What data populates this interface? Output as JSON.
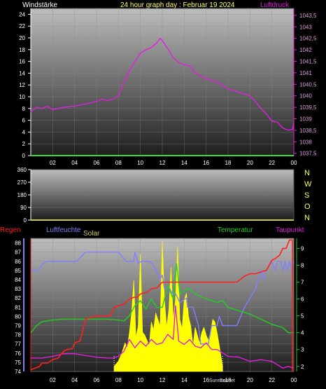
{
  "header": {
    "left_label": "Windstärke",
    "title": "24 hour graph day : Februar 19 2024",
    "right_label": "Luftdruck"
  },
  "colors": {
    "background": "#000000",
    "header_yellow": "#ffff66",
    "left_label": "#ffffff",
    "pressure": "#e020e0",
    "wind_baseline": "#33dd33",
    "direction_baseline": "#cccc33",
    "rain": "#ff2020",
    "humidity": "#8080ff",
    "solar": "#ffff00",
    "temperature": "#20d020",
    "dewpoint": "#e020e0",
    "grid": "#8a8a8a"
  },
  "compass": [
    "N",
    "W",
    "S",
    "O",
    "N"
  ],
  "sun_labels": [
    "Sunrise",
    "Sunset"
  ],
  "chart_data": [
    {
      "type": "line",
      "panel": "wind_pressure",
      "title": "24 hour graph day : Februar 19 2024",
      "xlabel": "",
      "x_ticks": [
        "02",
        "04",
        "06",
        "08",
        "10",
        "12",
        "14",
        "16",
        "18",
        "20",
        "22",
        "00"
      ],
      "xlim": [
        0,
        24
      ],
      "grid": true,
      "left_axis": {
        "label": "Windstärke",
        "ticks": [
          0,
          2,
          4,
          6,
          8,
          10,
          12,
          14,
          16,
          18,
          20,
          22,
          24
        ],
        "ylim": [
          0,
          25
        ]
      },
      "right_axis": {
        "label": "Luftdruck",
        "ticks": [
          "1037,5",
          "1038",
          "1038,5",
          "1039",
          "1039,5",
          "1040",
          "1040,5",
          "1041",
          "1041,5",
          "1042",
          "1042,5",
          "1043",
          "1043,5"
        ],
        "ylim": [
          1037.4,
          1043.8
        ]
      },
      "series": [
        {
          "name": "Luftdruck",
          "axis": "right",
          "x": [
            0,
            0.5,
            1,
            1.5,
            2,
            3,
            4,
            5,
            6,
            6.5,
            7,
            7.5,
            8,
            8.5,
            9,
            9.5,
            10,
            10.5,
            11,
            11.5,
            11.8,
            12,
            12.5,
            13,
            13.5,
            14,
            14.5,
            15,
            15.5,
            16,
            17,
            18,
            19,
            20,
            20.5,
            21,
            21.5,
            22,
            22.5,
            23,
            23.5,
            23.9,
            24
          ],
          "y": [
            1039.3,
            1039.5,
            1039.45,
            1039.55,
            1039.4,
            1039.5,
            1039.55,
            1039.65,
            1039.75,
            1039.85,
            1039.8,
            1039.85,
            1040.0,
            1040.6,
            1041.1,
            1041.5,
            1041.85,
            1042.0,
            1042.1,
            1042.3,
            1042.5,
            1042.4,
            1042.05,
            1041.65,
            1041.45,
            1041.35,
            1041.3,
            1041.0,
            1040.85,
            1040.75,
            1040.6,
            1040.3,
            1040.15,
            1040.0,
            1039.75,
            1039.45,
            1039.2,
            1038.9,
            1038.85,
            1038.6,
            1038.5,
            1038.55,
            1038.85
          ]
        },
        {
          "name": "Windstärke",
          "axis": "left",
          "x": [
            0,
            24
          ],
          "y": [
            0,
            0
          ]
        }
      ]
    },
    {
      "type": "line",
      "panel": "wind_direction",
      "xlim": [
        0,
        24
      ],
      "ylim": [
        0,
        360
      ],
      "y_ticks": [
        0,
        90,
        180,
        270,
        360
      ],
      "grid": true,
      "series": [
        {
          "x": [
            0,
            24
          ],
          "y": [
            0,
            0
          ]
        }
      ]
    },
    {
      "type": "line",
      "panel": "rain_humidity_temperature",
      "x_ticks": [
        "02",
        "04",
        "06",
        "08",
        "10",
        "12",
        "14",
        "16",
        "18",
        "20",
        "22",
        "00"
      ],
      "xlim": [
        0,
        24
      ],
      "grid": true,
      "legend": [
        "Regen",
        "Luftfeuchte",
        "Solar",
        "Temperatur",
        "Taupunkt"
      ],
      "left_axis": {
        "label": "Luftfeuchte",
        "ticks": [
          74,
          75,
          76,
          77,
          78,
          79,
          80,
          81,
          82,
          83,
          84,
          85,
          86,
          87,
          88
        ],
        "ylim": [
          74,
          88.5
        ]
      },
      "right_axis": {
        "label": "Temperatur",
        "ticks": [
          2,
          3,
          4,
          5,
          6,
          7,
          8,
          9
        ],
        "ylim": [
          1.7,
          9.6
        ]
      },
      "series": [
        {
          "name": "Luftfeuchte",
          "axis": "left",
          "x": [
            0,
            0.6,
            1.2,
            1.5,
            2.0,
            3,
            4.2,
            5.0,
            5.2,
            7,
            7.6,
            8.0,
            8.7,
            9.4,
            9.5,
            9.8,
            10.1,
            10.8,
            11.2,
            11.8,
            12.0,
            12.2,
            12.6,
            12.9,
            13.2,
            13.6,
            14.2,
            14.3,
            14.8,
            15.3,
            15.5,
            16.2,
            16.5,
            17.0,
            17.2,
            17.5,
            18.5,
            18.8,
            19.5,
            20.5,
            21.0,
            21.2,
            21.5,
            22.0,
            22.3,
            22.5,
            22.8,
            23.0,
            23.2,
            23.4,
            23.6,
            23.8,
            24
          ],
          "y": [
            85.0,
            85.0,
            85.8,
            86.0,
            86.0,
            86.0,
            86.0,
            87.0,
            87.0,
            87.0,
            87.0,
            87.0,
            86.0,
            86.0,
            87.0,
            85.8,
            86.0,
            86.0,
            85.6,
            84.0,
            84.5,
            83.0,
            83.2,
            82.5,
            82.5,
            81.5,
            82.0,
            81.0,
            81.0,
            79.0,
            77.0,
            77.0,
            79.0,
            79.0,
            80.0,
            79.0,
            79.0,
            79.0,
            81.0,
            83.0,
            85.0,
            84.0,
            85.0,
            86.0,
            85.0,
            86.0,
            86.0,
            85.0,
            86.0,
            85.0,
            86.0,
            85.0,
            86.0
          ]
        },
        {
          "name": "Temperatur",
          "axis": "right",
          "x": [
            0,
            0.5,
            1,
            2,
            3,
            4,
            5,
            6,
            7,
            8,
            8.5,
            9,
            9.5,
            10,
            10.5,
            11,
            11.5,
            12,
            12.5,
            13,
            13.3,
            13.6,
            14,
            14.5,
            15,
            16,
            17,
            17.5,
            18,
            19,
            20,
            21,
            22,
            23,
            23.5,
            24
          ],
          "y": [
            4.0,
            4.4,
            4.65,
            4.75,
            4.8,
            4.8,
            4.8,
            4.8,
            4.8,
            4.75,
            4.7,
            5.0,
            5.6,
            5.9,
            5.4,
            6.0,
            5.5,
            5.5,
            6.8,
            6.0,
            8.1,
            6.3,
            6.5,
            6.6,
            6.3,
            6.0,
            5.8,
            5.9,
            5.5,
            5.3,
            5.1,
            4.8,
            4.5,
            4.3,
            4.0,
            4.0
          ]
        },
        {
          "name": "Taupunkt",
          "axis": "right",
          "x": [
            0,
            1,
            2,
            3,
            4,
            5,
            6,
            7,
            7.5,
            8,
            8.5,
            9,
            9.5,
            10,
            10.5,
            11,
            11.5,
            12,
            12.5,
            13,
            13.2,
            13.5,
            14,
            14.5,
            15,
            15.5,
            16,
            16.5,
            17,
            18,
            19,
            20,
            21,
            22,
            23,
            23.5,
            24
          ],
          "y": [
            2.5,
            2.5,
            2.6,
            2.75,
            2.75,
            2.65,
            2.55,
            2.5,
            2.5,
            2.6,
            2.9,
            3.6,
            3.1,
            3.5,
            3.2,
            3.6,
            3.3,
            3.4,
            3.9,
            3.6,
            5.6,
            3.5,
            3.3,
            3.6,
            3.2,
            3.1,
            3.4,
            3.0,
            3.0,
            2.6,
            2.55,
            2.3,
            2.4,
            2.3,
            1.9,
            2.0,
            1.9
          ]
        },
        {
          "name": "Regen",
          "axis": "right",
          "x": [
            0,
            0.4,
            0.8,
            1.0,
            1.3,
            1.5,
            2.0,
            2.5,
            3.0,
            3.3,
            3.8,
            4.0,
            4.5,
            5.0,
            6.0,
            7.0,
            7.3,
            7.6,
            8.0,
            8.5,
            9.0,
            9.4,
            9.7,
            10.0,
            10.6,
            11.0,
            11.5,
            12.0,
            14.0,
            15.0,
            16.0,
            17.0,
            17.2,
            17.5,
            18.0,
            18.4,
            18.8,
            19.0,
            19.5,
            20.0,
            20.5,
            21.0,
            21.5,
            22.0,
            22.3,
            22.7,
            23.0,
            23.3,
            23.6,
            23.9
          ],
          "y": [
            1.8,
            1.9,
            2.0,
            2.2,
            2.2,
            2.2,
            2.4,
            2.5,
            2.9,
            3.0,
            3.05,
            3.4,
            3.5,
            4.8,
            5.0,
            5.0,
            5.0,
            5.5,
            5.6,
            5.7,
            6.0,
            6.1,
            6.1,
            6.3,
            6.4,
            6.6,
            6.65,
            7.0,
            7.0,
            7.0,
            7.0,
            7.0,
            7.0,
            7.0,
            7.0,
            7.0,
            7.0,
            7.1,
            7.35,
            7.5,
            7.5,
            7.6,
            7.7,
            8.3,
            8.4,
            8.6,
            9.0,
            9.0,
            9.5,
            9.5
          ]
        },
        {
          "name": "Solar",
          "axis": "none",
          "ylim": [
            0,
            100
          ],
          "x": [
            7.6,
            8.0,
            8.3,
            8.6,
            8.8,
            9.0,
            9.2,
            9.4,
            9.6,
            9.8,
            10.0,
            10.2,
            10.4,
            10.6,
            10.8,
            11.0,
            11.2,
            11.4,
            11.6,
            11.8,
            12.0,
            12.2,
            12.4,
            12.6,
            12.8,
            13.0,
            13.2,
            13.4,
            13.6,
            13.8,
            14.0,
            14.2,
            14.4,
            14.6,
            14.8,
            15.0,
            15.2,
            15.4,
            15.6,
            15.8,
            16.0,
            16.2,
            16.4,
            16.6,
            16.8,
            17.0,
            17.2,
            17.5
          ],
          "y": [
            4,
            8,
            14,
            22,
            18,
            30,
            45,
            70,
            26,
            35,
            90,
            30,
            28,
            24,
            20,
            38,
            32,
            45,
            40,
            35,
            100,
            55,
            34,
            48,
            80,
            40,
            55,
            96,
            40,
            33,
            55,
            60,
            42,
            35,
            20,
            34,
            28,
            22,
            30,
            34,
            28,
            24,
            30,
            40,
            38,
            30,
            20,
            4
          ]
        }
      ]
    }
  ]
}
